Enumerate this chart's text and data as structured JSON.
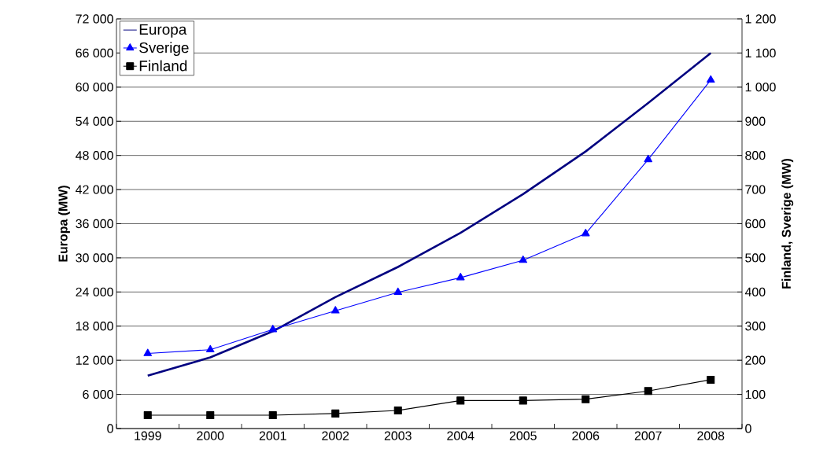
{
  "chart_data": {
    "type": "line",
    "categories": [
      "1999",
      "2000",
      "2001",
      "2002",
      "2003",
      "2004",
      "2005",
      "2006",
      "2007",
      "2008"
    ],
    "ylabel": "Europa (MW)",
    "y2label": "Finland, Sverige (MW)",
    "ylim": [
      0,
      72000
    ],
    "yticks": [
      {
        "value": 0,
        "label": "0"
      },
      {
        "value": 6000,
        "label": "6 000"
      },
      {
        "value": 12000,
        "label": "12 000"
      },
      {
        "value": 18000,
        "label": "18 000"
      },
      {
        "value": 24000,
        "label": "24 000"
      },
      {
        "value": 30000,
        "label": "30 000"
      },
      {
        "value": 36000,
        "label": "36 000"
      },
      {
        "value": 42000,
        "label": "42 000"
      },
      {
        "value": 48000,
        "label": "48 000"
      },
      {
        "value": 54000,
        "label": "54 000"
      },
      {
        "value": 60000,
        "label": "60 000"
      },
      {
        "value": 66000,
        "label": "66 000"
      },
      {
        "value": 72000,
        "label": "72 000"
      }
    ],
    "y2lim": [
      0,
      1200
    ],
    "y2ticks": [
      0,
      100,
      200,
      300,
      400,
      500,
      600,
      700,
      800,
      900,
      {
        "value": 1000,
        "label": "1 000"
      },
      {
        "value": 1100,
        "label": "1 100"
      },
      {
        "value": 1200,
        "label": "1 200"
      }
    ],
    "series": [
      {
        "name": "Europa",
        "color": "#000080",
        "marker": "none",
        "values": [
          9300,
          12500,
          17100,
          23100,
          28400,
          34400,
          41200,
          48700,
          57200,
          66000
        ]
      },
      {
        "name": "Sverige",
        "color": "#0000ff",
        "marker": "triangle",
        "axis": "y2",
        "values": [
          220,
          231,
          290,
          345,
          399,
          442,
          493,
          571,
          788,
          1021
        ]
      },
      {
        "name": "Finland",
        "color": "#000000",
        "marker": "square",
        "axis": "y2",
        "values": [
          39,
          39,
          39,
          44,
          53,
          82,
          82,
          86,
          110,
          143
        ]
      }
    ],
    "grid": "y",
    "legend": "top left",
    "line_style": "solid"
  }
}
